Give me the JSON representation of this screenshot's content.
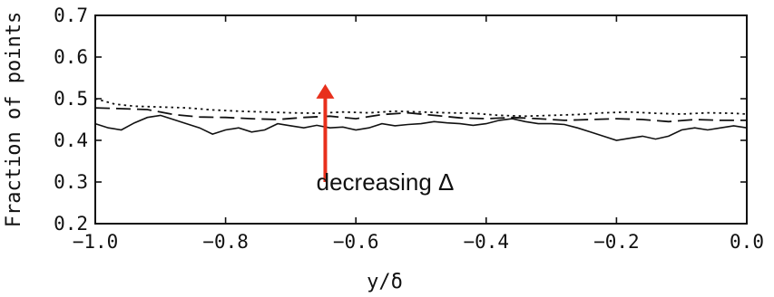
{
  "chart_data": {
    "type": "line",
    "xlabel": "y/δ",
    "ylabel": "Fraction of points",
    "xlim": [
      -1.0,
      0.0
    ],
    "ylim": [
      0.2,
      0.7
    ],
    "x_ticks": [
      "−1.0",
      "−0.8",
      "−0.6",
      "−0.4",
      "−0.2",
      "0.0"
    ],
    "x_tick_values": [
      -1.0,
      -0.8,
      -0.6,
      -0.4,
      -0.2,
      0.0
    ],
    "y_ticks": [
      "0.2",
      "0.3",
      "0.4",
      "0.5",
      "0.6",
      "0.7"
    ],
    "y_tick_values": [
      0.2,
      0.3,
      0.4,
      0.5,
      0.6,
      0.7
    ],
    "series": [
      {
        "style": "dotted",
        "x": [
          -1.0,
          -0.97,
          -0.94,
          -0.9,
          -0.86,
          -0.82,
          -0.78,
          -0.74,
          -0.7,
          -0.66,
          -0.62,
          -0.58,
          -0.54,
          -0.5,
          -0.46,
          -0.42,
          -0.38,
          -0.34,
          -0.3,
          -0.26,
          -0.22,
          -0.18,
          -0.14,
          -0.1,
          -0.06,
          -0.02,
          0.0
        ],
        "y": [
          0.5,
          0.487,
          0.482,
          0.48,
          0.478,
          0.473,
          0.47,
          0.468,
          0.466,
          0.465,
          0.468,
          0.466,
          0.47,
          0.468,
          0.466,
          0.465,
          0.46,
          0.458,
          0.46,
          0.462,
          0.466,
          0.468,
          0.465,
          0.463,
          0.466,
          0.465,
          0.463
        ]
      },
      {
        "style": "dashed",
        "x": [
          -1.0,
          -0.96,
          -0.92,
          -0.88,
          -0.84,
          -0.8,
          -0.76,
          -0.72,
          -0.68,
          -0.64,
          -0.6,
          -0.56,
          -0.52,
          -0.48,
          -0.44,
          -0.4,
          -0.36,
          -0.32,
          -0.28,
          -0.24,
          -0.2,
          -0.16,
          -0.12,
          -0.08,
          -0.04,
          0.0
        ],
        "y": [
          0.478,
          0.476,
          0.474,
          0.462,
          0.456,
          0.455,
          0.452,
          0.45,
          0.455,
          0.458,
          0.452,
          0.462,
          0.466,
          0.46,
          0.454,
          0.452,
          0.455,
          0.452,
          0.448,
          0.45,
          0.452,
          0.45,
          0.445,
          0.45,
          0.448,
          0.448
        ]
      },
      {
        "style": "solid",
        "x": [
          -1.0,
          -0.98,
          -0.96,
          -0.94,
          -0.92,
          -0.9,
          -0.88,
          -0.86,
          -0.84,
          -0.82,
          -0.8,
          -0.78,
          -0.76,
          -0.74,
          -0.72,
          -0.7,
          -0.68,
          -0.66,
          -0.64,
          -0.62,
          -0.6,
          -0.58,
          -0.56,
          -0.54,
          -0.52,
          -0.5,
          -0.48,
          -0.46,
          -0.44,
          -0.42,
          -0.4,
          -0.38,
          -0.36,
          -0.34,
          -0.32,
          -0.3,
          -0.28,
          -0.26,
          -0.24,
          -0.22,
          -0.2,
          -0.18,
          -0.16,
          -0.14,
          -0.12,
          -0.1,
          -0.08,
          -0.06,
          -0.04,
          -0.02,
          0.0
        ],
        "y": [
          0.44,
          0.43,
          0.425,
          0.442,
          0.455,
          0.46,
          0.45,
          0.44,
          0.43,
          0.415,
          0.425,
          0.43,
          0.42,
          0.425,
          0.44,
          0.435,
          0.43,
          0.436,
          0.43,
          0.432,
          0.425,
          0.43,
          0.44,
          0.435,
          0.438,
          0.44,
          0.445,
          0.442,
          0.44,
          0.436,
          0.44,
          0.448,
          0.452,
          0.445,
          0.44,
          0.44,
          0.438,
          0.43,
          0.42,
          0.41,
          0.4,
          0.405,
          0.41,
          0.403,
          0.41,
          0.425,
          0.43,
          0.425,
          0.43,
          0.435,
          0.43
        ]
      }
    ],
    "annotation": {
      "text": "decreasing Δ",
      "arrow_color": "#e8301c",
      "arrow_x": -0.647,
      "arrow_from": 0.3,
      "arrow_to": 0.535
    },
    "grid": false,
    "line_color": "#111111"
  }
}
